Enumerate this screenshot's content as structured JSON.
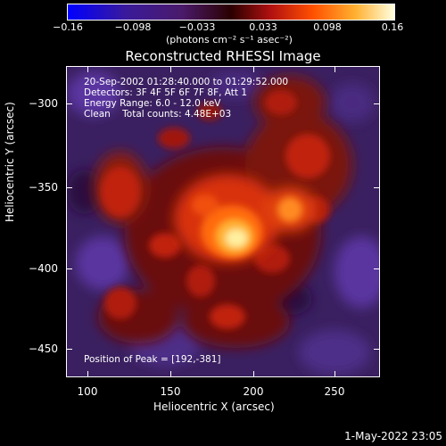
{
  "colorbar": {
    "ticks": [
      "−0.16",
      "−0.098",
      "−0.033",
      "0.033",
      "0.098",
      "0.16"
    ],
    "units": "(photons cm⁻² s⁻¹ asec⁻²)"
  },
  "title": "Reconstructed RHESSI Image",
  "info": {
    "line1": "20-Sep-2002 01:28:40.000 to 01:29:52.000",
    "line2": "Detectors: 3F 4F 5F 6F 7F 8F, Att 1",
    "line3": "Energy Range: 6.0 - 12.0 keV",
    "line4": "Clean    Total counts: 4.48E+03",
    "peak": "Position of Peak = [192,-381]"
  },
  "axes": {
    "xlabel": "Heliocentric X (arcsec)",
    "ylabel": "Heliocentric Y (arcsec)",
    "xticks": [
      "100",
      "150",
      "200",
      "250"
    ],
    "yticks": [
      "−300",
      "−350",
      "−400",
      "−450"
    ]
  },
  "timestamp": "1-May-2022 23:05"
}
